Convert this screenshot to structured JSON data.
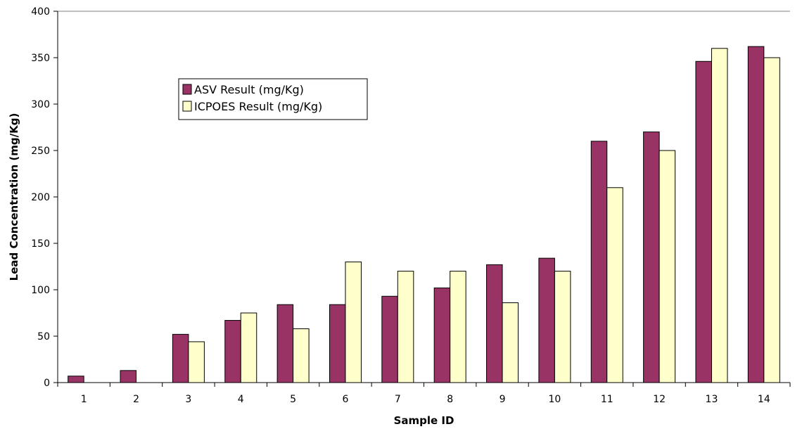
{
  "chart_data": {
    "type": "bar",
    "title": "",
    "xlabel": "Sample ID",
    "ylabel": "Lead Concentration (mg/Kg)",
    "ylim": [
      0,
      400
    ],
    "yticks": [
      "0",
      "50",
      "100",
      "150",
      "200",
      "250",
      "300",
      "350",
      "400"
    ],
    "categories": [
      "1",
      "2",
      "3",
      "4",
      "5",
      "6",
      "7",
      "8",
      "9",
      "10",
      "11",
      "12",
      "13",
      "14"
    ],
    "series": [
      {
        "name": "ASV Result (mg/Kg)",
        "color": "#993366",
        "values": [
          7,
          13,
          52,
          67,
          84,
          84,
          93,
          102,
          127,
          134,
          260,
          270,
          346,
          362
        ]
      },
      {
        "name": "ICPOES Result (mg/Kg)",
        "color": "#FFFFCC",
        "values": [
          0,
          0,
          44,
          75,
          58,
          130,
          120,
          120,
          86,
          120,
          210,
          250,
          360,
          350
        ]
      }
    ],
    "grid": false,
    "legend_position": "upper-left"
  }
}
